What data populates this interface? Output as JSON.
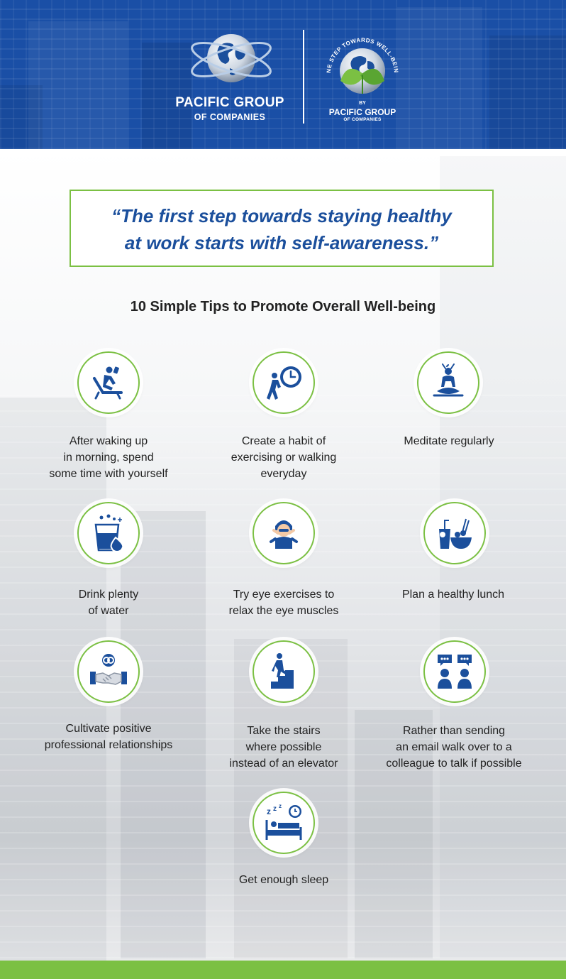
{
  "header": {
    "brand_name": "PACIFIC GROUP",
    "brand_sub": "OF COMPANIES",
    "wellbeing_arc_text": "ONE STEP TOWARDS WELL-BEING",
    "by": "BY",
    "by_brand": "PACIFIC GROUP",
    "by_sub": "OF COMPANIES"
  },
  "quote": {
    "line1": "“The first step towards staying healthy",
    "line2": "at work starts with self-awareness.”"
  },
  "tips_title": "10 Simple Tips to Promote Overall Well-being",
  "tips": [
    {
      "icon": "lounge-chair-icon",
      "lines": [
        "After waking up",
        "in morning, spend",
        "some time with yourself"
      ]
    },
    {
      "icon": "walking-clock-icon",
      "lines": [
        "Create a habit of",
        "exercising or walking",
        "everyday"
      ]
    },
    {
      "icon": "meditation-icon",
      "lines": [
        "Meditate regularly"
      ]
    },
    {
      "icon": "water-glass-icon",
      "lines": [
        "Drink plenty",
        "of water"
      ]
    },
    {
      "icon": "eye-exercise-icon",
      "lines": [
        "Try eye exercises to",
        "relax the eye muscles"
      ]
    },
    {
      "icon": "healthy-lunch-icon",
      "lines": [
        "Plan a healthy lunch"
      ]
    },
    {
      "icon": "handshake-icon",
      "lines": [
        "Cultivate positive",
        "professional relationships"
      ]
    },
    {
      "icon": "stairs-icon",
      "lines": [
        "Take the stairs",
        "where possible",
        "instead of an elevator"
      ]
    },
    {
      "icon": "conversation-icon",
      "lines": [
        "Rather than sending",
        "an email walk over to a",
        "colleague to talk if possible"
      ]
    },
    {
      "icon": "sleep-icon",
      "lines": [
        "Get enough sleep"
      ]
    }
  ],
  "colors": {
    "header_blue": "#1a4fa6",
    "icon_blue": "#1b4f9c",
    "accent_green": "#7bc043"
  }
}
